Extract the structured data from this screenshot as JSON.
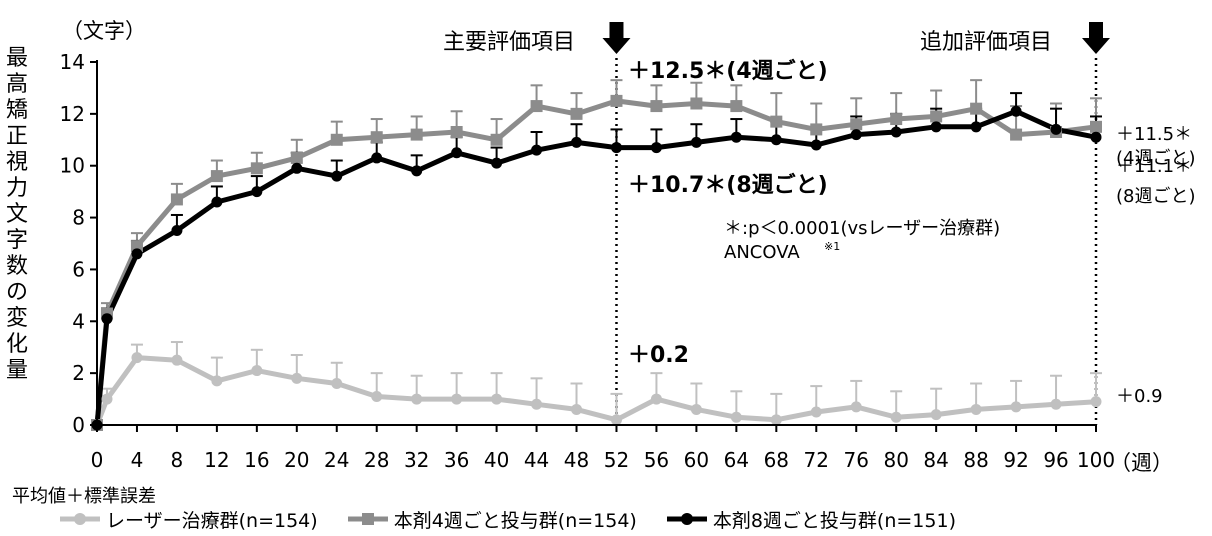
{
  "chart_data": {
    "type": "line",
    "unit_label": "（文字）",
    "ylabel": "最高矯正視力文字数の変化量",
    "xunit": "（週）",
    "footnote_stat": "平均値＋標準誤差",
    "x": [
      0,
      1,
      4,
      8,
      12,
      16,
      20,
      24,
      28,
      32,
      36,
      40,
      44,
      48,
      52,
      56,
      60,
      64,
      68,
      72,
      76,
      80,
      84,
      88,
      92,
      96,
      100
    ],
    "xticks": [
      0,
      4,
      8,
      12,
      16,
      20,
      24,
      28,
      32,
      36,
      40,
      44,
      48,
      52,
      56,
      60,
      64,
      68,
      72,
      76,
      80,
      84,
      88,
      92,
      96,
      100
    ],
    "ylim": [
      0,
      14
    ],
    "yticks": [
      0,
      2,
      4,
      6,
      8,
      10,
      12,
      14
    ],
    "series": [
      {
        "name": "レーザー治療群(n=154)",
        "color": "#c0c0c0",
        "marker": "circle",
        "values": [
          0.0,
          1.0,
          2.6,
          2.5,
          1.7,
          2.1,
          1.8,
          1.6,
          1.1,
          1.0,
          1.0,
          1.0,
          0.8,
          0.6,
          0.2,
          1.0,
          0.6,
          0.3,
          0.2,
          0.5,
          0.7,
          0.3,
          0.4,
          0.6,
          0.7,
          0.8,
          0.9
        ],
        "errors": [
          0.0,
          0.4,
          0.5,
          0.7,
          0.9,
          0.8,
          0.9,
          0.8,
          0.9,
          0.9,
          1.0,
          1.0,
          1.0,
          1.0,
          1.0,
          1.0,
          1.0,
          1.0,
          1.0,
          1.0,
          1.0,
          1.0,
          1.0,
          1.0,
          1.0,
          1.1,
          1.1
        ]
      },
      {
        "name": "本剤4週ごと投与群(n=154)",
        "color": "#8c8c8c",
        "marker": "square",
        "values": [
          0.0,
          4.3,
          6.9,
          8.7,
          9.6,
          9.9,
          10.3,
          11.0,
          11.1,
          11.2,
          11.3,
          11.0,
          12.3,
          12.0,
          12.5,
          12.3,
          12.4,
          12.3,
          11.7,
          11.4,
          11.6,
          11.8,
          11.9,
          12.2,
          11.2,
          11.3,
          11.5
        ],
        "errors": [
          0.0,
          0.4,
          0.5,
          0.6,
          0.6,
          0.6,
          0.7,
          0.7,
          0.7,
          0.7,
          0.8,
          0.8,
          0.8,
          0.8,
          0.8,
          0.8,
          0.8,
          0.8,
          1.1,
          1.0,
          1.0,
          1.0,
          1.0,
          1.1,
          1.1,
          1.1,
          1.1
        ]
      },
      {
        "name": "本剤8週ごと投与群(n=151)",
        "color": "#000000",
        "marker": "circle",
        "values": [
          0.0,
          4.1,
          6.6,
          7.5,
          8.6,
          9.0,
          9.9,
          9.6,
          10.3,
          9.8,
          10.5,
          10.1,
          10.6,
          10.9,
          10.7,
          10.7,
          10.9,
          11.1,
          11.0,
          10.8,
          11.2,
          11.3,
          11.5,
          11.5,
          12.1,
          11.4,
          11.1
        ],
        "errors": [
          0.0,
          0.4,
          0.5,
          0.6,
          0.6,
          0.6,
          0.6,
          0.6,
          0.6,
          0.6,
          0.6,
          0.6,
          0.7,
          0.7,
          0.7,
          0.7,
          0.7,
          0.7,
          0.7,
          0.7,
          0.7,
          0.7,
          0.7,
          0.7,
          0.7,
          0.8,
          0.8
        ]
      }
    ],
    "reference_lines": [
      {
        "x": 52,
        "label": "主要評価項目"
      },
      {
        "x": 100,
        "label": "追加評価項目"
      }
    ],
    "annotations_52": [
      "＋12.5＊(4週ごと)",
      "＋10.7＊(8週ごと)",
      "＋0.2"
    ],
    "annotations_100": [
      "＋11.5＊",
      "(4週ごと)",
      "＋11.1＊",
      "(8週ごと)",
      "＋0.9"
    ],
    "stat_note": [
      "＊:p＜0.0001(vsレーザー治療群)",
      "ANCOVA",
      "※1"
    ]
  }
}
